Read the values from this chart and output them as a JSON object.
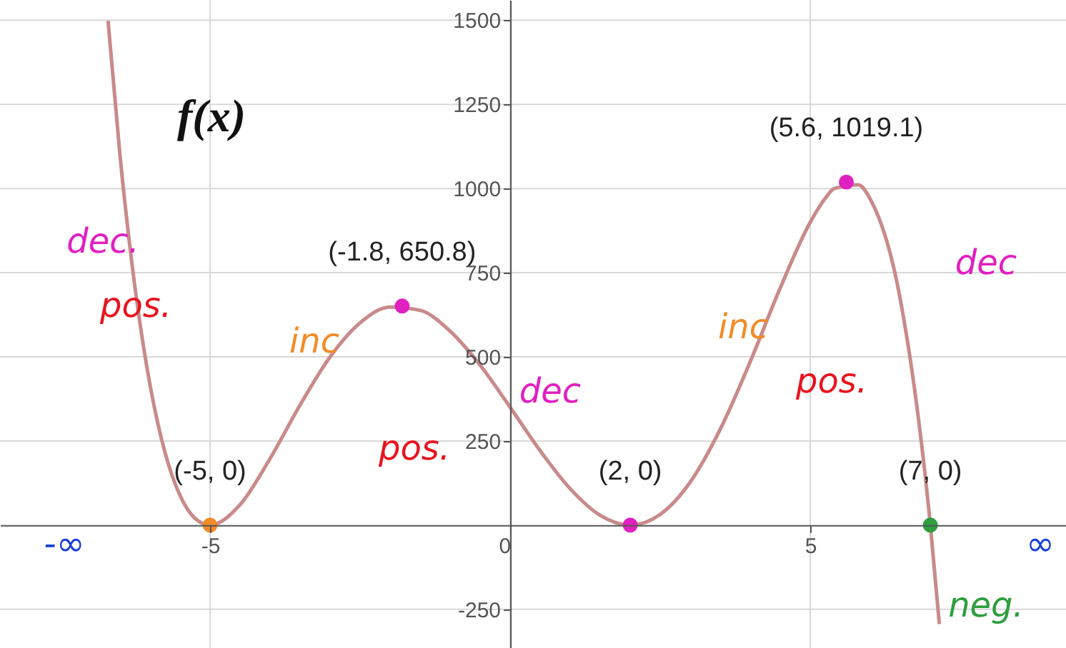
{
  "chart_data": {
    "type": "line",
    "title": "f(x)",
    "xlim": [
      -8.5,
      9.26
    ],
    "ylim": [
      -365,
      1560
    ],
    "xticks": [
      -5,
      0,
      5
    ],
    "yticks": [
      -250,
      250,
      500,
      750,
      1000,
      1250,
      1500
    ],
    "grid": true,
    "series": [
      {
        "type": "line",
        "color": "#c98a8a",
        "x": [
          -6.7,
          -6.5,
          -6.25,
          -6,
          -5.75,
          -5.5,
          -5.25,
          -5,
          -4.5,
          -4,
          -3.5,
          -3,
          -2.5,
          -2,
          -1.5,
          -1,
          -0.5,
          0,
          0.5,
          1,
          1.5,
          2,
          2.5,
          3,
          3.5,
          4,
          4.5,
          5,
          5.25,
          5.4,
          5.8,
          6,
          6.5,
          7,
          7.15
        ],
        "values": [
          1498,
          1097,
          705,
          416,
          215,
          88,
          20,
          0,
          61,
          198,
          357,
          500,
          601,
          648,
          638,
          576,
          475,
          350,
          221,
          108,
          29,
          0,
          32,
          128,
          285,
          486,
          705,
          900,
          971,
          1000,
          1011,
          968,
          670,
          0,
          -294
        ]
      },
      {
        "type": "scatter",
        "marker": "circle",
        "x": [
          -5,
          -1.8,
          2,
          5.6,
          7
        ],
        "values": [
          0,
          650.8,
          0,
          1019.1,
          0
        ],
        "colors": [
          "#f28c28",
          "#e020c0",
          "#e020c0",
          "#e020c0",
          "#2e9e3e"
        ],
        "value_labels": [
          "(-5, 0)",
          "(-1.8, 650.8)",
          "(2, 0)",
          "(5.6, 1019.1)",
          "(7, 0)"
        ]
      }
    ],
    "annotations": [
      "dec.",
      "pos.",
      "inc",
      "dec",
      "pos.",
      "inc",
      "pos.",
      "dec",
      "neg.",
      "-∞",
      "∞"
    ]
  }
}
